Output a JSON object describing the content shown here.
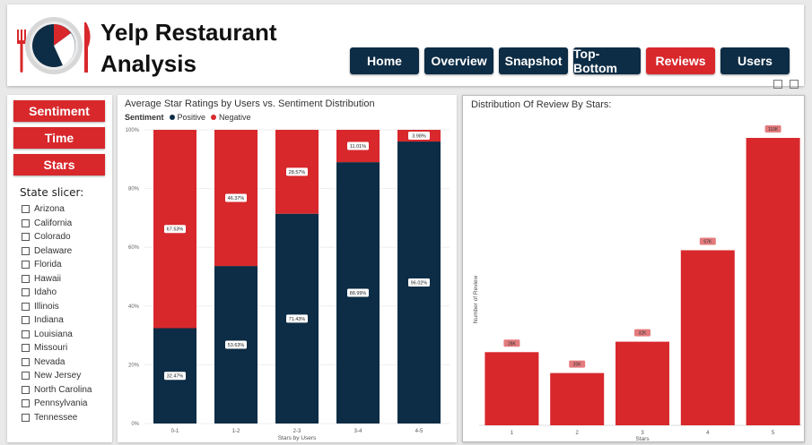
{
  "header": {
    "title_line1": "Yelp Restaurant",
    "title_line2": "Analysis",
    "nav": [
      {
        "label": "Home",
        "active": false
      },
      {
        "label": "Overview",
        "active": false
      },
      {
        "label": "Snapshot",
        "active": false
      },
      {
        "label": "Top-Bottom",
        "active": false
      },
      {
        "label": "Reviews",
        "active": true
      },
      {
        "label": "Users",
        "active": false
      }
    ]
  },
  "filters": {
    "sentiment_label": "Sentiment",
    "time_label": "Time",
    "stars_label": "Stars"
  },
  "slicer": {
    "title": "State slicer:",
    "states": [
      "Arizona",
      "California",
      "Colorado",
      "Delaware",
      "Florida",
      "Hawaii",
      "Idaho",
      "Illinois",
      "Indiana",
      "Louisiana",
      "Missouri",
      "Nevada",
      "New Jersey",
      "North Carolina",
      "Pennsylvania",
      "Tennessee"
    ]
  },
  "colors": {
    "accent": "#d8282c",
    "navy": "#0d2c45"
  },
  "chart_data": [
    {
      "type": "bar",
      "stacked": "100%",
      "title": "Average Star Ratings by Users vs. Sentiment Distribution",
      "legend_title": "Sentiment",
      "xlabel": "Stars by Users",
      "ylabel": "",
      "categories": [
        "0-1",
        "1-2",
        "2-3",
        "3-4",
        "4-5"
      ],
      "series": [
        {
          "name": "Positive",
          "color": "#0d2c45",
          "values": [
            32.47,
            53.63,
            71.43,
            88.99,
            96.02
          ],
          "labels": [
            "32.47%",
            "53.63%",
            "71.43%",
            "88.99%",
            "96.02%"
          ]
        },
        {
          "name": "Negative",
          "color": "#d8282c",
          "values": [
            67.53,
            46.37,
            28.57,
            11.01,
            3.98
          ],
          "labels": [
            "67.53%",
            "46.37%",
            "28.57%",
            "11.01%",
            "3.98%"
          ]
        }
      ],
      "yticks": [
        "0%",
        "20%",
        "40%",
        "60%",
        "80%",
        "100%"
      ],
      "ylim": [
        0,
        100
      ]
    },
    {
      "type": "bar",
      "title": "Distribution Of Review By Stars:",
      "xlabel": "Stars",
      "ylabel": "Number of Review",
      "categories": [
        "1",
        "2",
        "3",
        "4",
        "5"
      ],
      "values": [
        28,
        20,
        32,
        67,
        110
      ],
      "labels": [
        "28K",
        "20K",
        "32K",
        "67K",
        "110K"
      ],
      "ylim": [
        0,
        110
      ]
    }
  ]
}
